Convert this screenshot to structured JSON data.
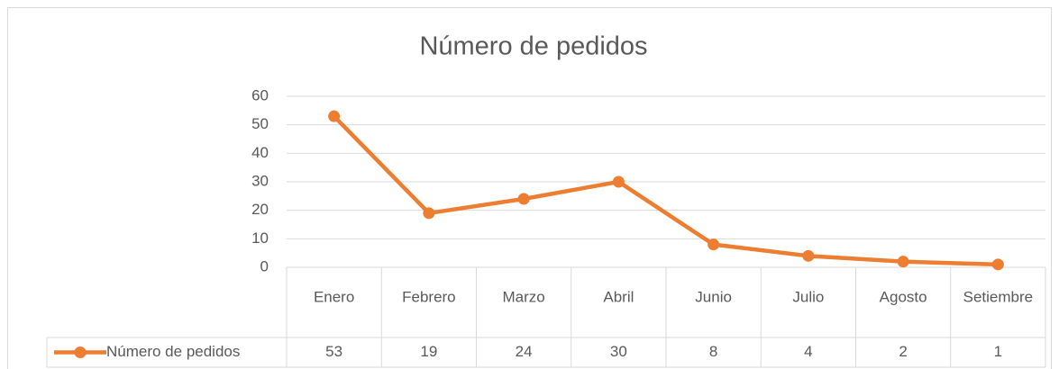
{
  "chart_data": {
    "type": "line",
    "title": "Número de pedidos",
    "categories": [
      "Enero",
      "Febrero",
      "Marzo",
      "Abril",
      "Junio",
      "Julio",
      "Agosto",
      "Setiembre"
    ],
    "series": [
      {
        "name": "Número de pedidos",
        "color": "#ed7d31",
        "values": [
          53,
          19,
          24,
          30,
          8,
          4,
          2,
          1
        ]
      }
    ],
    "ylim": [
      0,
      60
    ],
    "yticks": [
      0,
      10,
      20,
      30,
      40,
      50,
      60
    ],
    "grid": true,
    "data_table": true
  }
}
